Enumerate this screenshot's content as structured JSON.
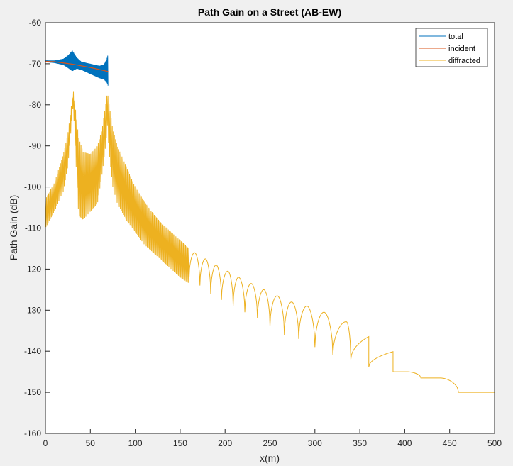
{
  "colors": {
    "figure_bg": "#f0f0f0",
    "axes_bg": "#ffffff",
    "axis": "#262626",
    "total": "#0072bd",
    "incident": "#d95319",
    "diffracted": "#edb120"
  },
  "chart_data": {
    "type": "line",
    "title": "Path Gain on a Street (AB-EW)",
    "xlabel": "x(m)",
    "ylabel": "Path Gain (dB)",
    "xlim": [
      0,
      500
    ],
    "ylim": [
      -160,
      -60
    ],
    "xticks": [
      0,
      50,
      100,
      150,
      200,
      250,
      300,
      350,
      400,
      450,
      500
    ],
    "yticks": [
      -160,
      -150,
      -140,
      -130,
      -120,
      -110,
      -100,
      -90,
      -80,
      -70,
      -60
    ],
    "grid": false,
    "legend_position": "top-right",
    "series": [
      {
        "name": "total",
        "color": "#0072bd",
        "x_range": [
          0,
          70
        ],
        "envelope_upper": [
          [
            0,
            -69.2
          ],
          [
            10,
            -69.2
          ],
          [
            20,
            -68.8
          ],
          [
            25,
            -68.0
          ],
          [
            30,
            -66.8
          ],
          [
            35,
            -68.5
          ],
          [
            40,
            -69.5
          ],
          [
            50,
            -70.0
          ],
          [
            60,
            -70.5
          ],
          [
            65,
            -70.2
          ],
          [
            68,
            -69.0
          ],
          [
            70,
            -67.5
          ]
        ],
        "envelope_lower": [
          [
            0,
            -69.6
          ],
          [
            10,
            -69.8
          ],
          [
            20,
            -70.3
          ],
          [
            25,
            -71.0
          ],
          [
            30,
            -71.8
          ],
          [
            35,
            -71.2
          ],
          [
            40,
            -71.5
          ],
          [
            50,
            -72.5
          ],
          [
            60,
            -73.5
          ],
          [
            65,
            -73.8
          ],
          [
            68,
            -74.5
          ],
          [
            70,
            -75.5
          ]
        ]
      },
      {
        "name": "incident",
        "color": "#d95319",
        "x": [
          0,
          10,
          20,
          30,
          40,
          50,
          60,
          70
        ],
        "y": [
          -69.4,
          -69.5,
          -69.8,
          -70.1,
          -70.5,
          -70.9,
          -71.4,
          -71.9
        ]
      },
      {
        "name": "diffracted",
        "color": "#edb120",
        "x_range": [
          0,
          500
        ],
        "envelope_upper": [
          [
            0,
            -103.0
          ],
          [
            10,
            -99.0
          ],
          [
            20,
            -92.0
          ],
          [
            25,
            -87.0
          ],
          [
            29,
            -80.0
          ],
          [
            31,
            -76.5
          ],
          [
            33,
            -80.0
          ],
          [
            37,
            -88.0
          ],
          [
            42,
            -91.5
          ],
          [
            50,
            -92.0
          ],
          [
            58,
            -90.0
          ],
          [
            63,
            -86.0
          ],
          [
            67,
            -80.0
          ],
          [
            69,
            -76.8
          ],
          [
            71,
            -80.0
          ],
          [
            75,
            -86.0
          ],
          [
            80,
            -90.0
          ],
          [
            90,
            -95.0
          ],
          [
            100,
            -100.0
          ],
          [
            110,
            -103.5
          ],
          [
            120,
            -106.5
          ],
          [
            130,
            -109.0
          ],
          [
            140,
            -111.0
          ],
          [
            150,
            -113.0
          ],
          [
            160,
            -115.0
          ],
          [
            170,
            -116.5
          ],
          [
            180,
            -118.0
          ],
          [
            190,
            -119.5
          ],
          [
            200,
            -121.0
          ],
          [
            210,
            -122.5
          ],
          [
            220,
            -123.8
          ],
          [
            240,
            -126.0
          ],
          [
            260,
            -127.5
          ],
          [
            280,
            -129.5
          ],
          [
            300,
            -131.0
          ],
          [
            320,
            -132.0
          ],
          [
            340,
            -133.0
          ],
          [
            360,
            -134.5
          ],
          [
            380,
            -135.3
          ],
          [
            400,
            -136.0
          ],
          [
            420,
            -137.0
          ],
          [
            440,
            -138.0
          ],
          [
            460,
            -138.5
          ],
          [
            480,
            -139.0
          ],
          [
            500,
            -139.5
          ]
        ],
        "envelope_lower": [
          [
            0,
            -110.0
          ],
          [
            10,
            -106.0
          ],
          [
            20,
            -101.0
          ],
          [
            25,
            -95.0
          ],
          [
            29,
            -85.0
          ],
          [
            31,
            -80.0
          ],
          [
            33,
            -90.0
          ],
          [
            37,
            -107.0
          ],
          [
            42,
            -108.0
          ],
          [
            50,
            -106.0
          ],
          [
            58,
            -104.0
          ],
          [
            63,
            -97.0
          ],
          [
            67,
            -90.0
          ],
          [
            69,
            -85.0
          ],
          [
            71,
            -92.0
          ],
          [
            75,
            -100.0
          ],
          [
            80,
            -104.0
          ],
          [
            90,
            -108.0
          ],
          [
            100,
            -111.0
          ],
          [
            110,
            -114.0
          ],
          [
            120,
            -116.0
          ],
          [
            130,
            -118.0
          ],
          [
            140,
            -120.0
          ],
          [
            150,
            -122.0
          ],
          [
            160,
            -123.5
          ],
          [
            170,
            -125.0
          ],
          [
            180,
            -126.5
          ],
          [
            190,
            -128.0
          ],
          [
            200,
            -130.0
          ],
          [
            210,
            -131.0
          ],
          [
            220,
            -132.0
          ],
          [
            240,
            -134.0
          ],
          [
            260,
            -136.0
          ],
          [
            280,
            -138.0
          ],
          [
            300,
            -140.0
          ],
          [
            320,
            -141.0
          ],
          [
            340,
            -142.0
          ],
          [
            360,
            -143.5
          ],
          [
            380,
            -145.0
          ],
          [
            400,
            -146.0
          ],
          [
            420,
            -146.5
          ],
          [
            440,
            -147.5
          ],
          [
            460,
            -148.0
          ],
          [
            480,
            -149.0
          ],
          [
            500,
            -150.0
          ]
        ],
        "lobes": [
          {
            "x_start": 160,
            "x_end": 172
          },
          {
            "x_start": 172,
            "x_end": 184
          },
          {
            "x_start": 184,
            "x_end": 196
          },
          {
            "x_start": 196,
            "x_end": 209
          },
          {
            "x_start": 209,
            "x_end": 222
          },
          {
            "x_start": 222,
            "x_end": 236
          },
          {
            "x_start": 236,
            "x_end": 250
          },
          {
            "x_start": 250,
            "x_end": 266
          },
          {
            "x_start": 266,
            "x_end": 282
          },
          {
            "x_start": 282,
            "x_end": 300
          },
          {
            "x_start": 300,
            "x_end": 320
          },
          {
            "x_start": 320,
            "x_end": 340
          },
          {
            "x_start": 340,
            "x_end": 360
          },
          {
            "x_start": 360,
            "x_end": 387
          },
          {
            "x_start": 387,
            "x_end": 418
          },
          {
            "x_start": 418,
            "x_end": 460
          },
          {
            "x_start": 460,
            "x_end": 500
          }
        ],
        "minima": [
          [
            160,
            -122.0
          ],
          [
            172,
            -124.0
          ],
          [
            184,
            -126.0
          ],
          [
            196,
            -127.5
          ],
          [
            209,
            -129.0
          ],
          [
            222,
            -130.5
          ],
          [
            236,
            -132.0
          ],
          [
            250,
            -134.0
          ],
          [
            266,
            -136.0
          ],
          [
            282,
            -137.0
          ],
          [
            300,
            -139.0
          ],
          [
            320,
            -141.0
          ],
          [
            340,
            -142.0
          ],
          [
            360,
            -143.8
          ],
          [
            387,
            -145.0
          ],
          [
            418,
            -146.5
          ],
          [
            500,
            -150.0
          ]
        ],
        "maxima": [
          [
            166,
            -116.0
          ],
          [
            178,
            -117.5
          ],
          [
            190,
            -119.0
          ],
          [
            203,
            -120.5
          ],
          [
            215,
            -122.0
          ],
          [
            229,
            -123.5
          ],
          [
            243,
            -125.0
          ],
          [
            258,
            -126.5
          ],
          [
            274,
            -128.0
          ],
          [
            291,
            -129.0
          ],
          [
            310,
            -130.5
          ],
          [
            335,
            -132.8
          ],
          [
            383,
            -135.2
          ],
          [
            450,
            -138.3
          ]
        ]
      }
    ]
  }
}
